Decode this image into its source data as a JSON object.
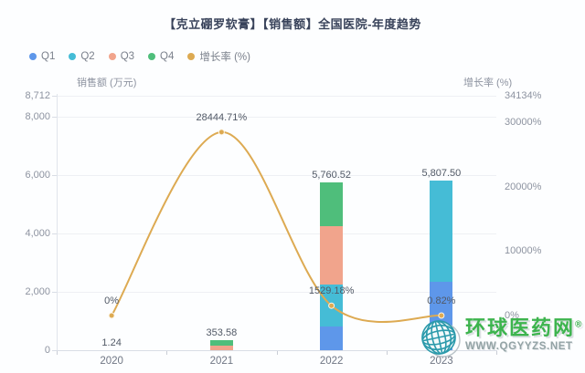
{
  "title": "【克立硼罗软膏】【销售额】全国医院-年度趋势",
  "legend": {
    "items": [
      {
        "label": "Q1",
        "color": "#5e97ea"
      },
      {
        "label": "Q2",
        "color": "#45bcd6"
      },
      {
        "label": "Q3",
        "color": "#f1a48c"
      },
      {
        "label": "Q4",
        "color": "#4fbe7b"
      },
      {
        "label": "增长率 (%)",
        "color": "#ddaa52"
      }
    ]
  },
  "watermark": {
    "site_name": "环球医药网",
    "reg_mark": "®",
    "site_url": "WWW.QGYYZS.NET",
    "brand_color": "#3db44e",
    "globe_icon": "globe-icon"
  },
  "chart_data": {
    "type": "bar",
    "combo": "stacked quarterly bars + growth-rate line on secondary axis",
    "title": "【克立硼罗软膏】【销售额】全国医院-年度趋势",
    "categories": [
      "2020",
      "2021",
      "2022",
      "2023"
    ],
    "bar_series": [
      {
        "name": "Q1",
        "color": "#5e97ea",
        "values": [
          0,
          0,
          810,
          2330
        ]
      },
      {
        "name": "Q2",
        "color": "#45bcd6",
        "values": [
          0,
          0,
          1440,
          3477.5
        ]
      },
      {
        "name": "Q3",
        "color": "#f1a48c",
        "values": [
          0.6,
          170,
          2010.52,
          0
        ]
      },
      {
        "name": "Q4",
        "color": "#4fbe7b",
        "values": [
          0.64,
          183.58,
          1500,
          0
        ]
      }
    ],
    "quarter_split_note": "only yearly totals are labeled in the image; per-quarter values estimated from segment heights",
    "bar_totals": [
      1.24,
      353.58,
      5760.52,
      5807.5
    ],
    "bar_total_labels": [
      "1.24",
      "353.58",
      "5,760.52",
      "5,807.50"
    ],
    "line_series": {
      "name": "增长率 (%)",
      "color": "#ddaa52",
      "values": [
        0,
        28444.71,
        1529.18,
        0.82
      ],
      "labels": [
        "0%",
        "28444.71%",
        "1529.18%",
        "0.82%"
      ]
    },
    "left_axis": {
      "label": "销售额 (万元)",
      "tick_values": [
        8712,
        8000,
        6000,
        4000,
        2000,
        0
      ],
      "tick_labels": [
        "8,712",
        "8,000",
        "6,000",
        "4,000",
        "2,000",
        "0"
      ],
      "max": 8712
    },
    "right_axis": {
      "label": "增长率 (%)",
      "tick_values": [
        34134,
        30000,
        20000,
        10000,
        0
      ],
      "tick_labels": [
        "34134%",
        "30000%",
        "20000%",
        "10000%",
        "0%"
      ],
      "max": 34134
    },
    "legend_position": "top-left",
    "grid": true
  }
}
